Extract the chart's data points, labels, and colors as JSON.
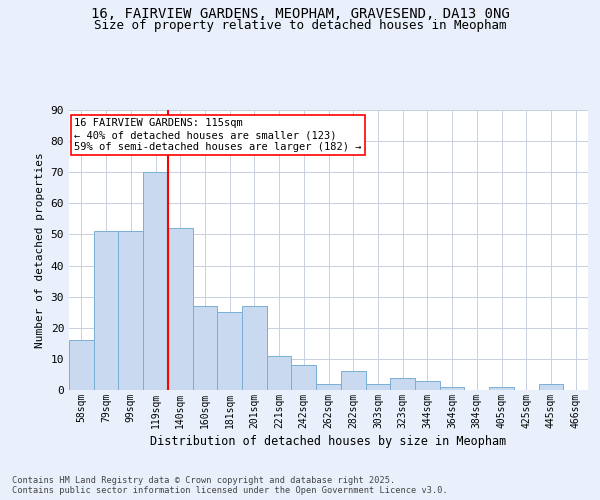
{
  "title_line1": "16, FAIRVIEW GARDENS, MEOPHAM, GRAVESEND, DA13 0NG",
  "title_line2": "Size of property relative to detached houses in Meopham",
  "xlabel": "Distribution of detached houses by size in Meopham",
  "ylabel": "Number of detached properties",
  "categories": [
    "58sqm",
    "79sqm",
    "99sqm",
    "119sqm",
    "140sqm",
    "160sqm",
    "181sqm",
    "201sqm",
    "221sqm",
    "242sqm",
    "262sqm",
    "282sqm",
    "303sqm",
    "323sqm",
    "344sqm",
    "364sqm",
    "384sqm",
    "405sqm",
    "425sqm",
    "445sqm",
    "466sqm"
  ],
  "heights": [
    16,
    51,
    51,
    70,
    52,
    27,
    25,
    27,
    11,
    8,
    2,
    6,
    2,
    4,
    3,
    1,
    0,
    1,
    0,
    2,
    0
  ],
  "bar_color": "#c9d9f0",
  "bar_edge_color": "#7bafd4",
  "vline_x": 3.5,
  "vline_color": "red",
  "annotation_text": "16 FAIRVIEW GARDENS: 115sqm\n← 40% of detached houses are smaller (123)\n59% of semi-detached houses are larger (182) →",
  "annotation_box_color": "white",
  "annotation_box_edge": "red",
  "ylim": [
    0,
    90
  ],
  "yticks": [
    0,
    10,
    20,
    30,
    40,
    50,
    60,
    70,
    80,
    90
  ],
  "bg_color": "#eaf0fb",
  "plot_bg_color": "white",
  "footnote": "Contains HM Land Registry data © Crown copyright and database right 2025.\nContains public sector information licensed under the Open Government Licence v3.0.",
  "title_fontsize": 10,
  "subtitle_fontsize": 9
}
